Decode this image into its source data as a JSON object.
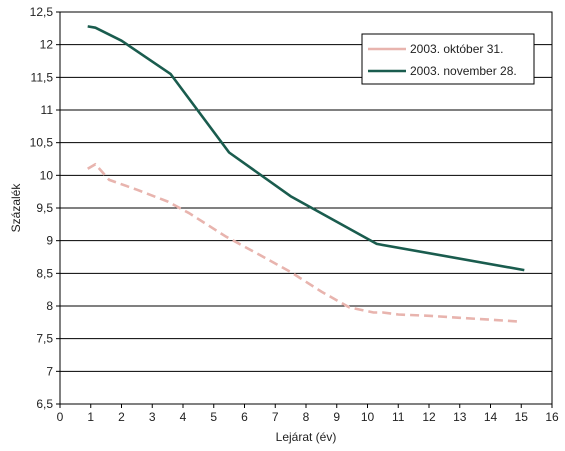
{
  "chart_data": {
    "type": "line",
    "xlabel": "Lejárat (év)",
    "ylabel": "Százalék",
    "xlim": [
      0,
      16
    ],
    "ylim": [
      6.5,
      12.5
    ],
    "x_ticks": [
      "0",
      "1",
      "2",
      "3",
      "4",
      "5",
      "6",
      "7",
      "8",
      "9",
      "10",
      "11",
      "12",
      "13",
      "14",
      "15",
      "16"
    ],
    "y_ticks": [
      "6,5",
      "7",
      "7,5",
      "8",
      "8,5",
      "9",
      "9,5",
      "10",
      "10,5",
      "11",
      "11,5",
      "12",
      "12,5"
    ],
    "grid": "horizontal",
    "legend_position": "top-right",
    "series": [
      {
        "name": "2003. október 31.",
        "color": "#e8b4ae",
        "dashed": true,
        "points": [
          [
            0.9,
            10.1
          ],
          [
            1.15,
            10.17
          ],
          [
            1.6,
            9.93
          ],
          [
            2.5,
            9.78
          ],
          [
            3.5,
            9.6
          ],
          [
            4.2,
            9.42
          ],
          [
            5.4,
            9.06
          ],
          [
            6.5,
            8.78
          ],
          [
            7.5,
            8.52
          ],
          [
            8.5,
            8.22
          ],
          [
            9.4,
            7.98
          ],
          [
            10.2,
            7.9
          ],
          [
            10.5,
            7.9
          ],
          [
            11.0,
            7.87
          ],
          [
            12.0,
            7.85
          ],
          [
            13.0,
            7.82
          ],
          [
            14.0,
            7.79
          ],
          [
            15.0,
            7.76
          ]
        ]
      },
      {
        "name": "2003. november 28.",
        "color": "#1a5c4e",
        "dashed": false,
        "points": [
          [
            0.9,
            12.28
          ],
          [
            1.15,
            12.26
          ],
          [
            2.0,
            12.06
          ],
          [
            3.6,
            11.55
          ],
          [
            5.5,
            10.35
          ],
          [
            7.5,
            9.68
          ],
          [
            10.3,
            8.95
          ],
          [
            15.1,
            8.55
          ]
        ]
      }
    ]
  }
}
